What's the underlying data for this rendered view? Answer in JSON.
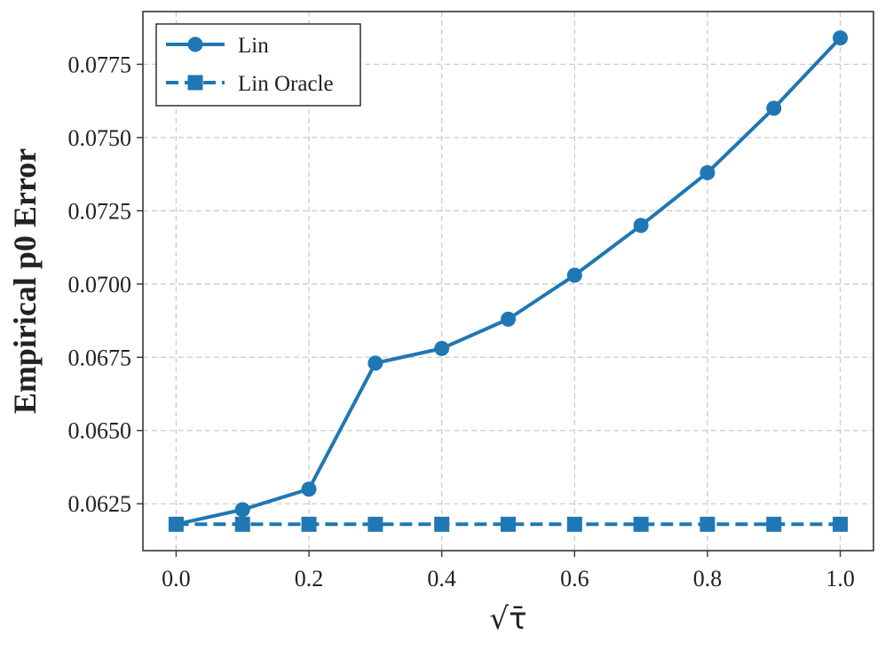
{
  "chart_data": {
    "type": "line",
    "title": "",
    "xlabel": "√τ̄",
    "ylabel": "Empirical p0 Error",
    "xlim": [
      -0.05,
      1.05
    ],
    "ylim": [
      0.0609,
      0.0793
    ],
    "xticks": [
      0.0,
      0.2,
      0.4,
      0.6,
      0.8,
      1.0
    ],
    "xtick_labels": [
      "0.0",
      "0.2",
      "0.4",
      "0.6",
      "0.8",
      "1.0"
    ],
    "yticks": [
      0.0625,
      0.065,
      0.0675,
      0.07,
      0.0725,
      0.075,
      0.0775
    ],
    "ytick_labels": [
      "0.0625",
      "0.0650",
      "0.0675",
      "0.0700",
      "0.0725",
      "0.0750",
      "0.0775"
    ],
    "grid": true,
    "legend_position": "top-left",
    "x": [
      0.0,
      0.1,
      0.2,
      0.3,
      0.4,
      0.5,
      0.6,
      0.7,
      0.8,
      0.9,
      1.0
    ],
    "series": [
      {
        "name": "Lin",
        "color": "#1f77b4",
        "marker": "circle",
        "line_style": "solid",
        "values": [
          0.0618,
          0.0623,
          0.063,
          0.0673,
          0.0678,
          0.0688,
          0.0703,
          0.072,
          0.0738,
          0.076,
          0.0784
        ]
      },
      {
        "name": "Lin Oracle",
        "color": "#1f77b4",
        "marker": "square",
        "line_style": "dashed",
        "values": [
          0.0618,
          0.0618,
          0.0618,
          0.0618,
          0.0618,
          0.0618,
          0.0618,
          0.0618,
          0.0618,
          0.0618,
          0.0618
        ]
      }
    ]
  }
}
